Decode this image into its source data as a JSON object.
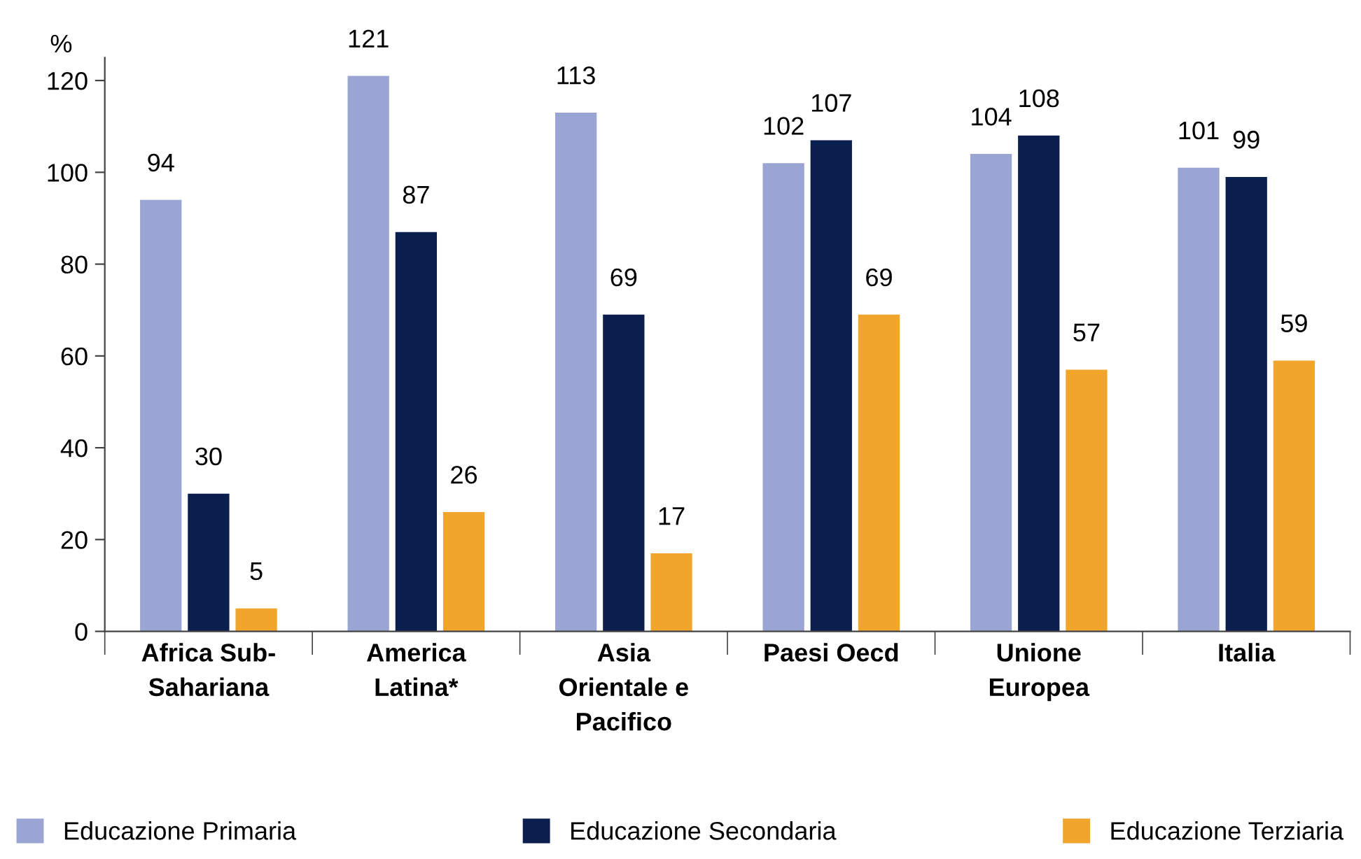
{
  "chart_data": {
    "type": "bar",
    "ylabel": "%",
    "categories": [
      "Africa Sub-\nSahariana",
      "America\nLatina*",
      "Asia\nOrientale e\nPacifico",
      "Paesi Oecd",
      "Unione\nEuropea",
      "Italia"
    ],
    "series": [
      {
        "name": "Educazione Primaria",
        "color": "#9ba5d3",
        "values": [
          94,
          121,
          113,
          102,
          104,
          101
        ]
      },
      {
        "name": "Educazione Secondaria",
        "color": "#0b1f4f",
        "values": [
          30,
          87,
          69,
          107,
          108,
          99
        ]
      },
      {
        "name": "Educazione Terziaria",
        "color": "#f2a52d",
        "values": [
          5,
          26,
          17,
          69,
          57,
          59
        ]
      }
    ],
    "ylim": [
      0,
      125
    ],
    "yticks": [
      0,
      20,
      40,
      60,
      80,
      100,
      120
    ],
    "data_labels": true,
    "grid": false,
    "legend": "bottom"
  }
}
